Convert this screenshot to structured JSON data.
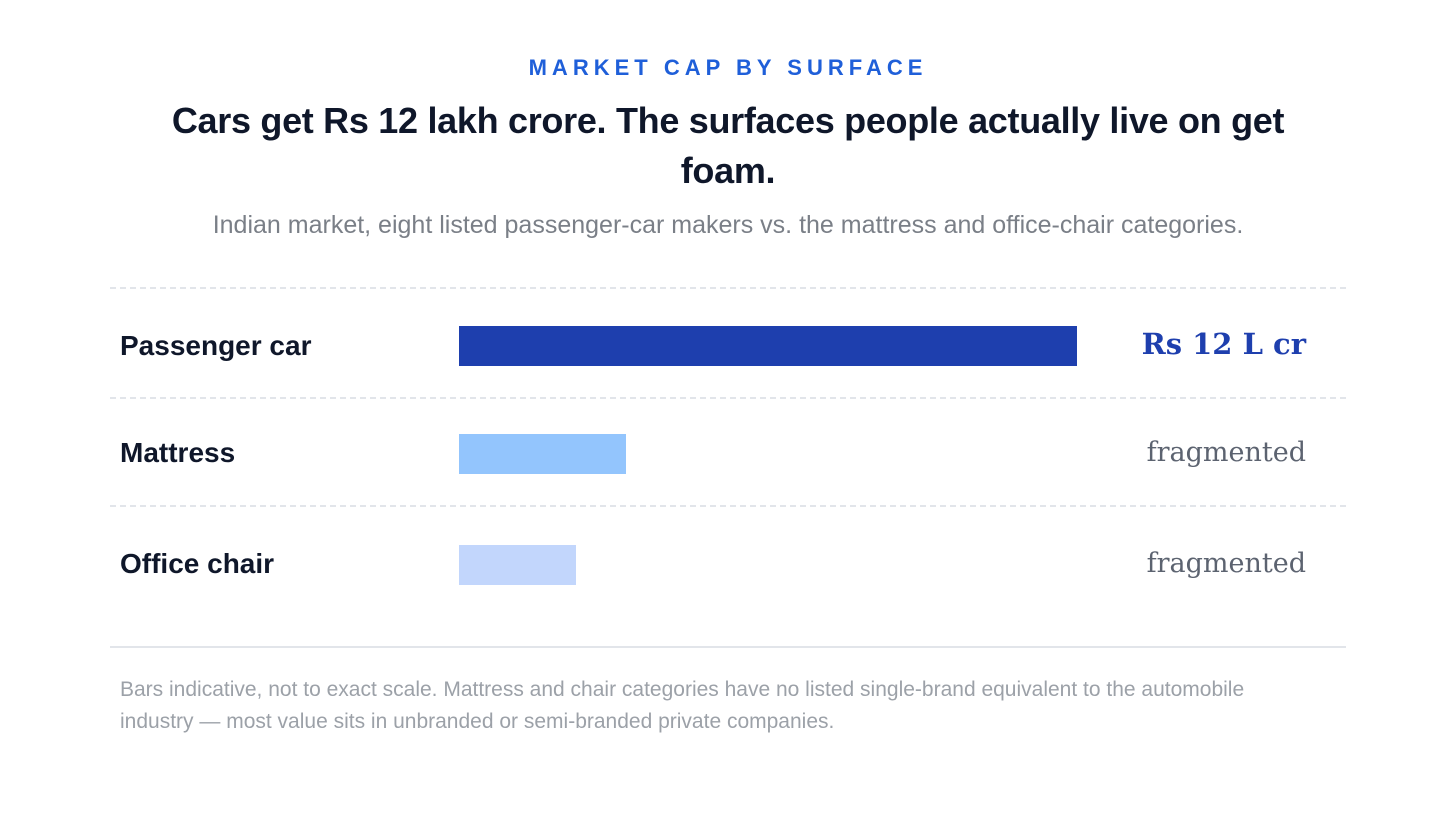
{
  "chart_data": {
    "type": "bar",
    "orientation": "horizontal",
    "eyebrow": "MARKET CAP BY SURFACE",
    "title": "Cars get Rs 12 lakh crore. The surfaces people actually live on get foam.",
    "subtitle": "Indian market, eight listed passenger-car makers vs. the mattress and office-chair categories.",
    "categories": [
      "Passenger car",
      "Mattress",
      "Office chair"
    ],
    "values": [
      12,
      3.25,
      2.27
    ],
    "value_labels": [
      "Rs 12 L cr",
      "fragmented",
      "fragmented"
    ],
    "scale_max": 12,
    "colors": {
      "eyebrow": "#1f5fd9",
      "bars": [
        "#1e3fae",
        "#93c5fd",
        "#c2d6fc"
      ],
      "value_labels": [
        "#1e3fae",
        "#5c6370",
        "#5c6370"
      ]
    },
    "footnote": "Bars indicative, not to exact scale. Mattress and chair categories have no listed single-brand equivalent to the automobile industry — most value sits in unbranded or semi-branded private companies."
  }
}
